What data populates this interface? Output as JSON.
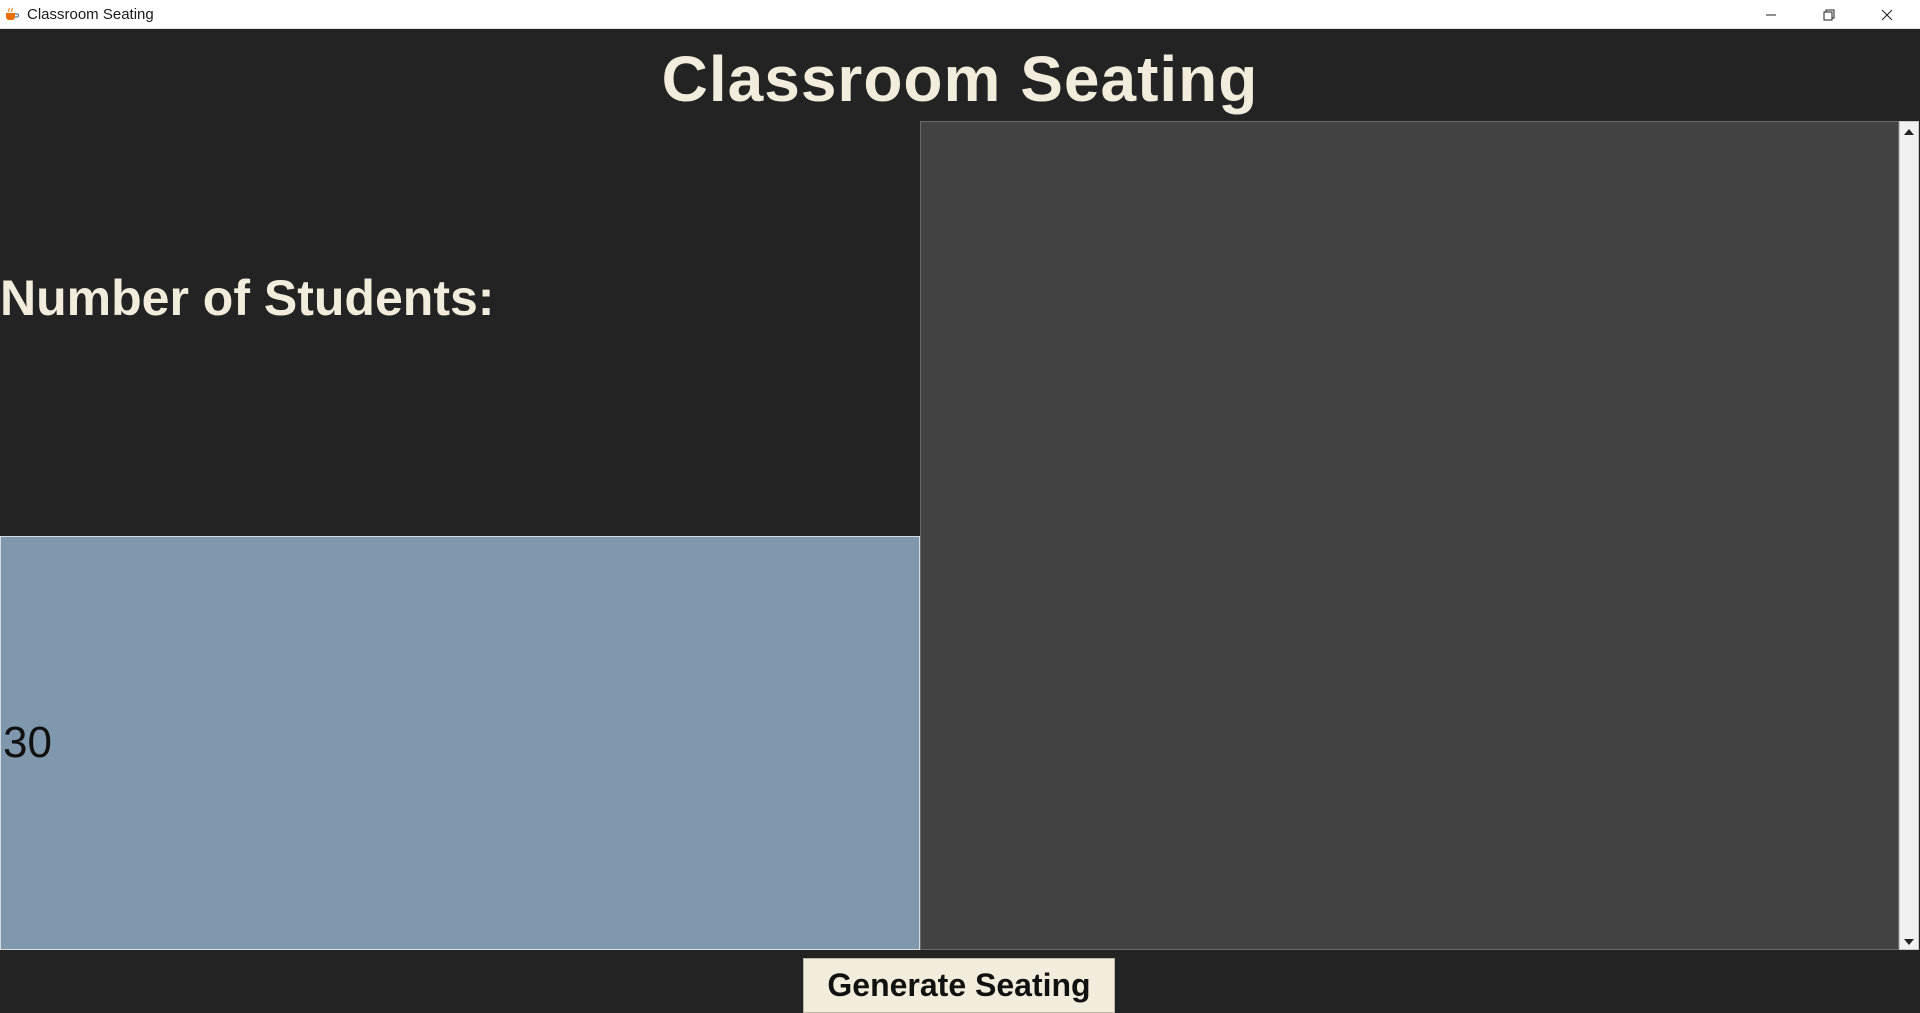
{
  "window": {
    "title": "Classroom Seating",
    "app_icon": "java-cup-icon",
    "controls": {
      "minimize_icon": "minimize-icon",
      "maximize_icon": "restore-icon",
      "close_icon": "close-icon"
    }
  },
  "header": {
    "title": "Classroom Seating"
  },
  "form": {
    "students_label": "Number of Students:",
    "students_value": "30",
    "generate_label": "Generate Seating"
  },
  "output": {
    "text": ""
  },
  "colors": {
    "background": "#232323",
    "text_cream": "#f2ecdc",
    "input_background": "#7f98ad",
    "output_background": "#424242",
    "button_background": "#f2ecdc"
  }
}
